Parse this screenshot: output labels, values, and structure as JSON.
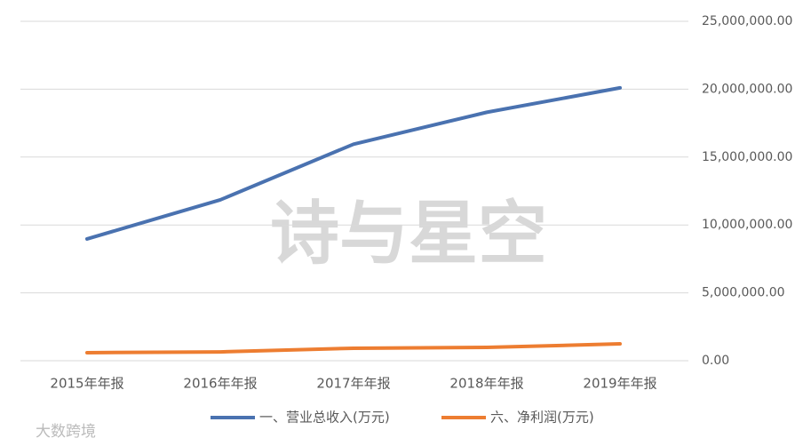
{
  "chart_data": {
    "type": "line",
    "categories": [
      "2015年年报",
      "2016年年报",
      "2017年年报",
      "2018年年报",
      "2019年年报"
    ],
    "series": [
      {
        "name": "一、营业总收入(万元)",
        "color": "#4a72b0",
        "values": [
          8970000,
          11850000,
          15950000,
          18300000,
          20100000
        ]
      },
      {
        "name": "六、净利润(万元)",
        "color": "#ed7d31",
        "values": [
          590000,
          650000,
          920000,
          980000,
          1240000
        ]
      }
    ],
    "ylim": [
      0,
      25000000
    ],
    "yticks": [
      {
        "value": 0,
        "label": "0.00"
      },
      {
        "value": 5000000,
        "label": "5,000,000.00"
      },
      {
        "value": 10000000,
        "label": "10,000,000.00"
      },
      {
        "value": 15000000,
        "label": "15,000,000.00"
      },
      {
        "value": 20000000,
        "label": "20,000,000.00"
      },
      {
        "value": 25000000,
        "label": "25,000,000.00"
      }
    ],
    "grid": true,
    "legend": "bottom",
    "watermark": "诗与星空",
    "logo": "大数跨境"
  }
}
